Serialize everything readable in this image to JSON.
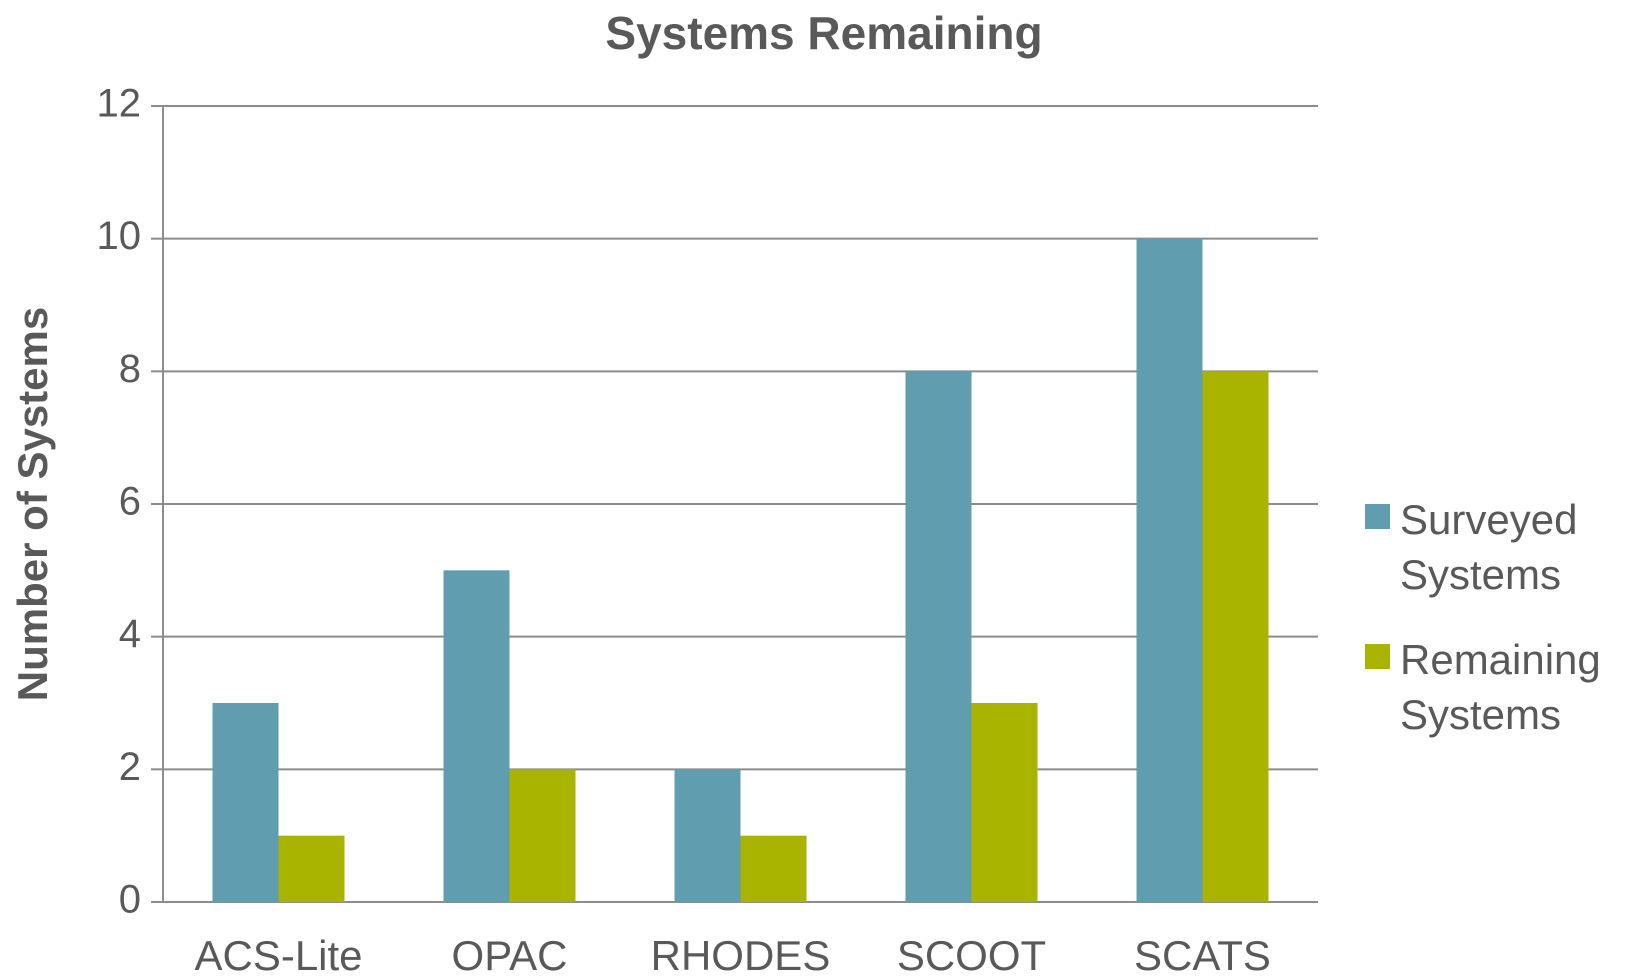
{
  "chart_data": {
    "type": "bar",
    "title": "Systems Remaining",
    "y_label": "Number of Systems",
    "categories": [
      "ACS-Lite",
      "OPAC",
      "RHODES",
      "SCOOT",
      "SCATS"
    ],
    "series": [
      {
        "name": "Surveyed Systems",
        "color": "#609dae",
        "values": [
          3,
          5,
          2,
          8,
          10
        ]
      },
      {
        "name": "Remaining Systems",
        "color": "#a9b400",
        "values": [
          1,
          2,
          1,
          3,
          8
        ]
      }
    ],
    "ylim": [
      0,
      12
    ],
    "yticks": [
      0,
      2,
      4,
      6,
      8,
      10,
      12
    ],
    "grid": true,
    "legend": "right"
  }
}
